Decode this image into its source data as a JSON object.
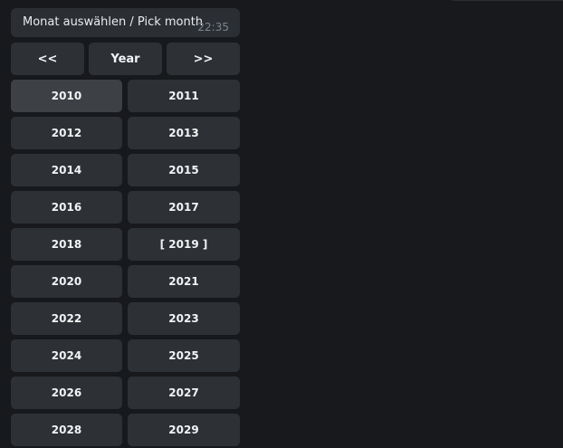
{
  "message": {
    "text": "Monat auswählen / Pick month",
    "time": "22:35"
  },
  "nav": {
    "prev": "<<",
    "title": "Year",
    "next": ">>"
  },
  "years": [
    "2010",
    "2011",
    "2012",
    "2013",
    "2014",
    "2015",
    "2016",
    "2017",
    "2018",
    "[ 2019 ]",
    "2020",
    "2021",
    "2022",
    "2023",
    "2024",
    "2025",
    "2026",
    "2027",
    "2028",
    "2029"
  ],
  "hovered_year": "2010"
}
